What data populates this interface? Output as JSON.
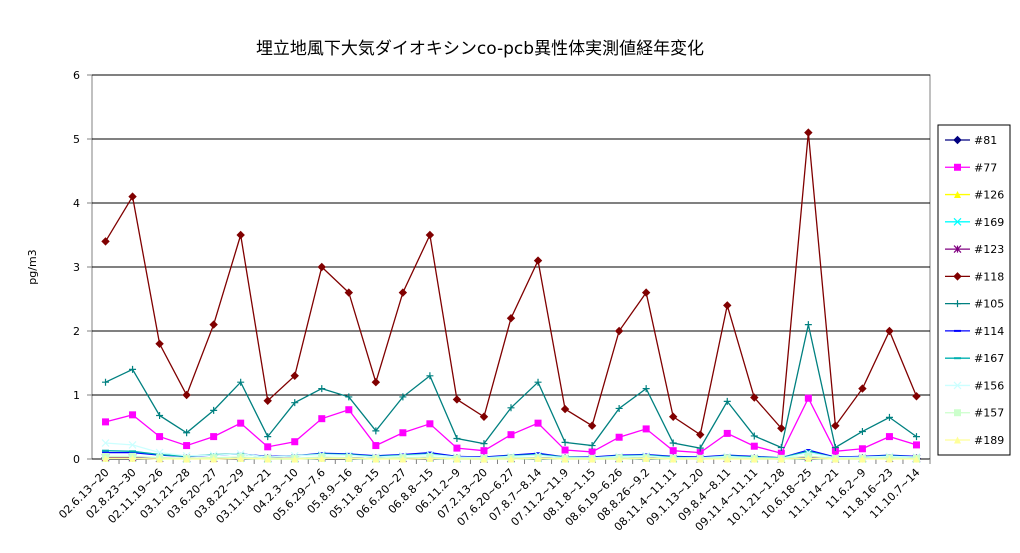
{
  "chart_data": {
    "type": "line",
    "title": "埋立地風下大気ダイオキシンco-pcb異性体実測値経年変化",
    "y_label": "pg/m3",
    "categories": [
      "02.6.13~20",
      "02.8.23~30",
      "02.11.19~26",
      "03.1.21~28",
      "03.6.20~27",
      "03.8.22~29",
      "03.11.14~21",
      "04.2.3~10",
      "05.6.29~7.6",
      "05.8.9~16",
      "05.11.8~15",
      "06.6.20~27",
      "06.8.8~15",
      "06.11.2~9",
      "07.2.13~20",
      "07.6.20~6.27",
      "07.8.7~8.14",
      "07.11.2~11.9",
      "08.1.8~1.15",
      "08.6.19~6.26",
      "08.8.26~9.2",
      "08.11.4~11.11",
      "09.1.13~1.20",
      "09.8.4~8.11",
      "09.11.4~11.11",
      "10.1.21~1.28",
      "10.6.18~25",
      "11.1.14~21",
      "11.6.2~9",
      "11.8.16~23",
      "11.10.7~14"
    ],
    "ylim": [
      0,
      6
    ],
    "yticks": [
      0,
      1,
      2,
      3,
      4,
      5,
      6
    ],
    "grid": true,
    "legend": "right",
    "series": [
      {
        "name": "#81",
        "color": "#000080",
        "marker": "diamond",
        "values": [
          0.02,
          0.02,
          0.01,
          0.01,
          0.01,
          0.02,
          0.01,
          0.01,
          0.02,
          0.02,
          0.01,
          0.01,
          0.02,
          0.01,
          0.01,
          0.01,
          0.02,
          0.01,
          0.01,
          0.01,
          0.02,
          0.01,
          0.01,
          0.01,
          0.01,
          0.01,
          0.03,
          0.01,
          0.01,
          0.01,
          0.01
        ]
      },
      {
        "name": "#77",
        "color": "#ff00ff",
        "marker": "square",
        "values": [
          0.58,
          0.69,
          0.35,
          0.21,
          0.35,
          0.56,
          0.19,
          0.27,
          0.63,
          0.77,
          0.21,
          0.41,
          0.55,
          0.17,
          0.13,
          0.38,
          0.56,
          0.14,
          0.11,
          0.34,
          0.47,
          0.13,
          0.1,
          0.4,
          0.2,
          0.09,
          0.95,
          0.12,
          0.16,
          0.35,
          0.22
        ]
      },
      {
        "name": "#126",
        "color": "#ffff00",
        "marker": "triangle",
        "values": [
          0.03,
          0.03,
          0.02,
          0.01,
          0.02,
          0.02,
          0.01,
          0.01,
          0.02,
          0.02,
          0.01,
          0.02,
          0.02,
          0.01,
          0.01,
          0.01,
          0.02,
          0.01,
          0.01,
          0.01,
          0.02,
          0.01,
          0.01,
          0.02,
          0.01,
          0.01,
          0.04,
          0.01,
          0.01,
          0.02,
          0.01
        ]
      },
      {
        "name": "#169",
        "color": "#00ffff",
        "marker": "x",
        "values": [
          0.01,
          0.01,
          0.01,
          0.0,
          0.01,
          0.01,
          0.0,
          0.0,
          0.01,
          0.01,
          0.0,
          0.01,
          0.01,
          0.0,
          0.0,
          0.0,
          0.01,
          0.0,
          0.0,
          0.0,
          0.01,
          0.0,
          0.0,
          0.01,
          0.0,
          0.0,
          0.01,
          0.0,
          0.0,
          0.01,
          0.0
        ]
      },
      {
        "name": "#123",
        "color": "#800080",
        "marker": "star",
        "values": [
          0.02,
          0.02,
          0.01,
          0.01,
          0.01,
          0.02,
          0.01,
          0.01,
          0.02,
          0.02,
          0.01,
          0.01,
          0.02,
          0.01,
          0.0,
          0.01,
          0.02,
          0.01,
          0.0,
          0.01,
          0.02,
          0.01,
          0.0,
          0.01,
          0.01,
          0.0,
          0.03,
          0.0,
          0.01,
          0.01,
          0.01
        ]
      },
      {
        "name": "#118",
        "color": "#800000",
        "marker": "diamond",
        "values": [
          3.4,
          4.1,
          1.8,
          1.0,
          2.1,
          3.5,
          0.91,
          1.3,
          3.0,
          2.6,
          1.2,
          2.6,
          3.5,
          0.93,
          0.66,
          2.2,
          3.1,
          0.78,
          0.52,
          2.0,
          2.6,
          0.66,
          0.38,
          2.4,
          0.96,
          0.48,
          5.1,
          0.52,
          1.1,
          2.0,
          0.98
        ]
      },
      {
        "name": "#105",
        "color": "#008080",
        "marker": "plus",
        "values": [
          1.2,
          1.4,
          0.68,
          0.41,
          0.76,
          1.2,
          0.35,
          0.88,
          1.1,
          0.97,
          0.44,
          0.97,
          1.3,
          0.32,
          0.24,
          0.8,
          1.2,
          0.26,
          0.21,
          0.79,
          1.1,
          0.25,
          0.17,
          0.9,
          0.36,
          0.18,
          2.1,
          0.18,
          0.43,
          0.65,
          0.35
        ]
      },
      {
        "name": "#114",
        "color": "#0000ff",
        "marker": "dash",
        "values": [
          0.1,
          0.1,
          0.06,
          0.04,
          0.06,
          0.08,
          0.04,
          0.05,
          0.09,
          0.08,
          0.05,
          0.07,
          0.1,
          0.04,
          0.03,
          0.06,
          0.09,
          0.03,
          0.03,
          0.06,
          0.07,
          0.04,
          0.03,
          0.06,
          0.04,
          0.02,
          0.14,
          0.03,
          0.04,
          0.06,
          0.04
        ]
      },
      {
        "name": "#167",
        "color": "#00b0b0",
        "marker": "dash",
        "values": [
          0.13,
          0.12,
          0.07,
          0.04,
          0.07,
          0.08,
          0.03,
          0.05,
          0.08,
          0.07,
          0.04,
          0.06,
          0.08,
          0.03,
          0.02,
          0.05,
          0.07,
          0.03,
          0.02,
          0.05,
          0.06,
          0.03,
          0.02,
          0.05,
          0.03,
          0.02,
          0.12,
          0.02,
          0.03,
          0.05,
          0.03
        ]
      },
      {
        "name": "#156",
        "color": "#ccffff",
        "marker": "x",
        "values": [
          0.25,
          0.22,
          0.1,
          0.05,
          0.06,
          0.08,
          0.03,
          0.05,
          0.07,
          0.06,
          0.03,
          0.05,
          0.07,
          0.03,
          0.02,
          0.04,
          0.06,
          0.02,
          0.02,
          0.04,
          0.05,
          0.02,
          0.02,
          0.04,
          0.02,
          0.01,
          0.1,
          0.02,
          0.03,
          0.04,
          0.03
        ]
      },
      {
        "name": "#157",
        "color": "#ccffcc",
        "marker": "square",
        "values": [
          0.04,
          0.04,
          0.02,
          0.01,
          0.02,
          0.03,
          0.01,
          0.01,
          0.03,
          0.02,
          0.01,
          0.02,
          0.03,
          0.01,
          0.01,
          0.02,
          0.02,
          0.01,
          0.01,
          0.02,
          0.02,
          0.01,
          0.01,
          0.02,
          0.01,
          0.01,
          0.04,
          0.01,
          0.01,
          0.02,
          0.01
        ]
      },
      {
        "name": "#189",
        "color": "#ffff99",
        "marker": "triangle",
        "values": [
          0.01,
          0.01,
          0.0,
          0.0,
          0.0,
          0.01,
          0.0,
          0.0,
          0.01,
          0.01,
          0.0,
          0.0,
          0.01,
          0.0,
          0.0,
          0.0,
          0.01,
          0.0,
          0.0,
          0.0,
          0.01,
          0.0,
          0.0,
          0.0,
          0.0,
          0.0,
          0.01,
          0.0,
          0.0,
          0.0,
          0.0
        ]
      }
    ]
  }
}
